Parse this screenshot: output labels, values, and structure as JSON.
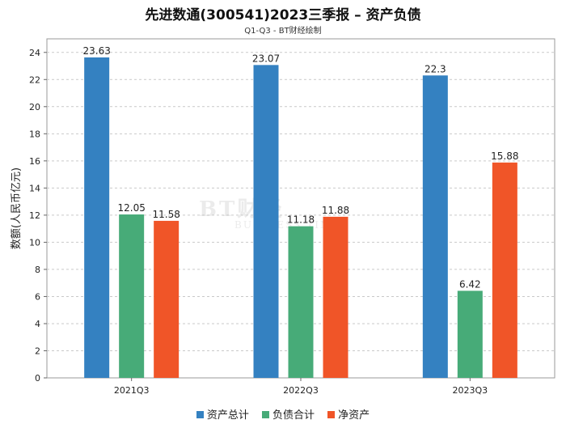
{
  "chart_data": {
    "type": "bar",
    "title": "先进数通(300541)2023三季报 – 资产负债",
    "subtitle": "Q1-Q3 - BT财经绘制",
    "ylabel": "数额(人民币亿元)",
    "xlabel": "",
    "categories": [
      "2021Q3",
      "2022Q3",
      "2023Q3"
    ],
    "series": [
      {
        "name": "资产总计",
        "values": [
          23.63,
          23.07,
          22.3
        ],
        "color": "#3481c1"
      },
      {
        "name": "负债合计",
        "values": [
          12.05,
          11.18,
          6.42
        ],
        "color": "#47ab78"
      },
      {
        "name": "净资产",
        "values": [
          11.58,
          11.88,
          15.88
        ],
        "color": "#f05528"
      }
    ],
    "ylim": [
      0,
      25
    ],
    "yticks": [
      0,
      2,
      4,
      6,
      8,
      10,
      12,
      14,
      16,
      18,
      20,
      22,
      24
    ],
    "grid": true,
    "legend_position": "bottom"
  },
  "watermark": {
    "main": "BT财经",
    "sub": "BUSINESS TIMES"
  }
}
